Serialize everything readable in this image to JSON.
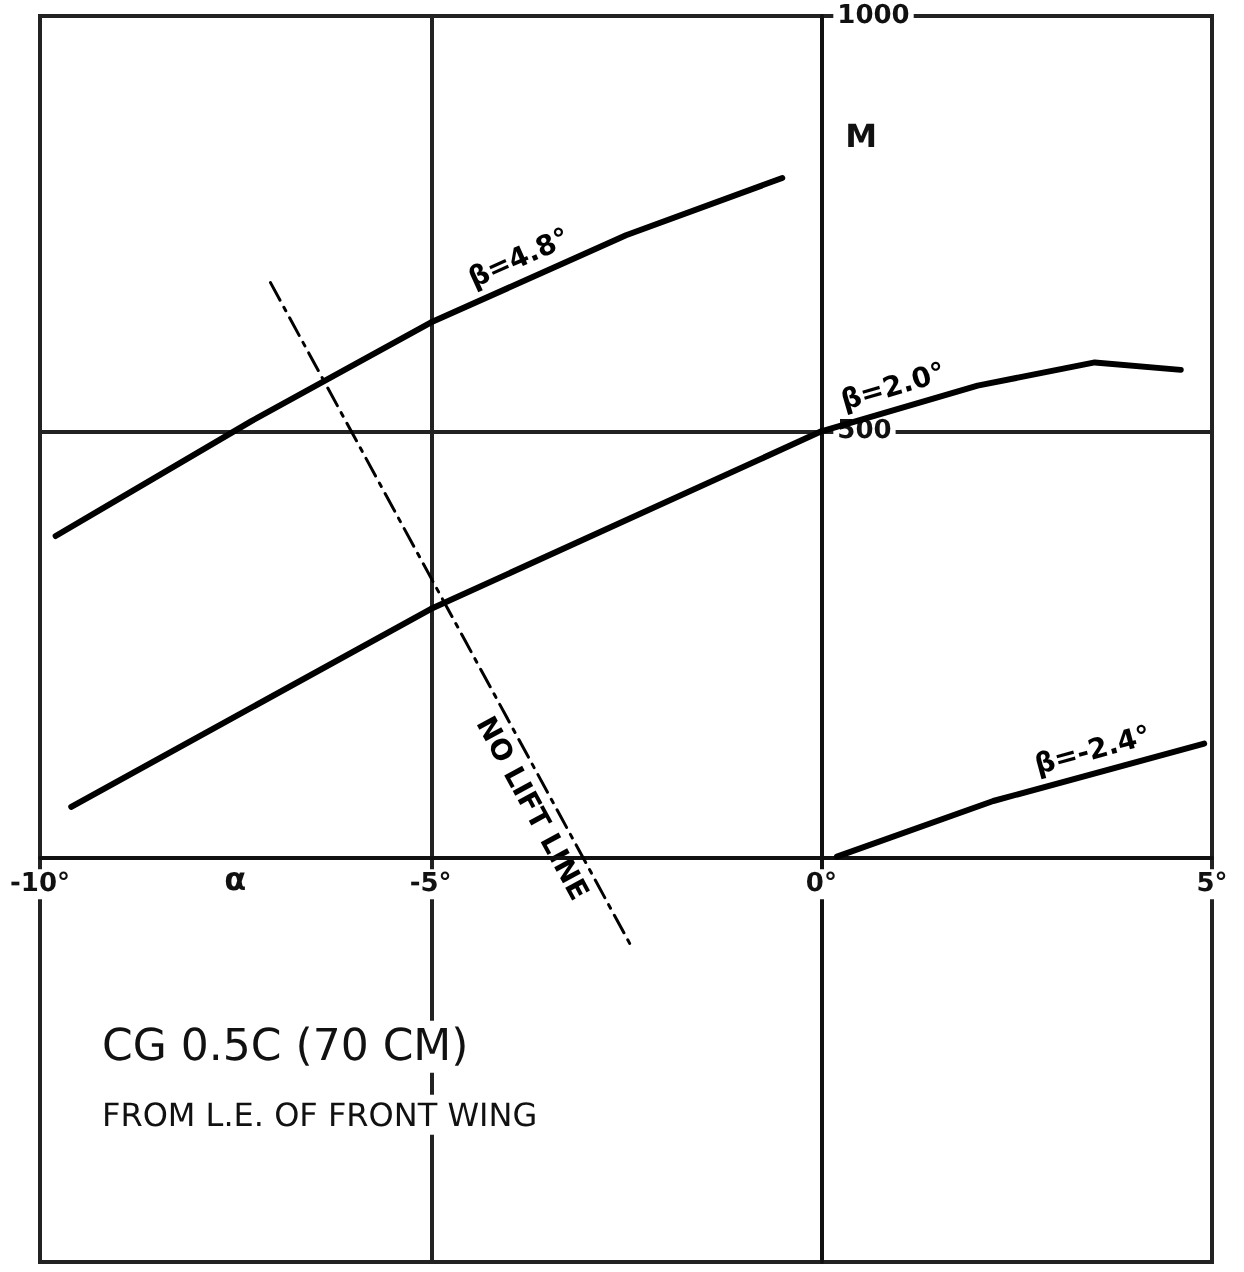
{
  "chart_data": {
    "type": "line",
    "xlabel": "α",
    "ylabel": "M",
    "xlim": [
      -10,
      5
    ],
    "ylim": [
      -500,
      1000
    ],
    "xticks": [
      {
        "value": -10,
        "label": "-10°"
      },
      {
        "value": -5,
        "label": "-5°"
      },
      {
        "value": 0,
        "label": "0°"
      },
      {
        "value": 5,
        "label": "5°"
      }
    ],
    "yticks": [
      500,
      1000
    ],
    "grid": true,
    "legend": false,
    "marker": "none",
    "series": [
      {
        "name": "β=4.8°",
        "color": "#000000",
        "x": [
          -9.8,
          -7.3,
          -5,
          -2.5,
          -0.5
        ],
        "values": [
          374,
          512,
          631,
          736,
          805
        ]
      },
      {
        "name": "β=2.0°",
        "color": "#000000",
        "x": [
          -9.6,
          -5,
          0,
          2,
          3.5,
          4.6
        ],
        "values": [
          48,
          286,
          500,
          555,
          583,
          574
        ]
      },
      {
        "name": "β=-2.4°",
        "color": "#000000",
        "x": [
          0.2,
          2.2,
          4.9
        ],
        "values": [
          -12,
          55,
          124
        ]
      },
      {
        "name": "NO LIFT LINE",
        "color": "#000000",
        "line_style": "dashed",
        "x": [
          -7.05,
          -2.45
        ],
        "values": [
          679,
          -117
        ]
      }
    ],
    "annotations": [
      "CG 0.5C (70 CM)",
      "FROM L.E. OF FRONT WING"
    ]
  }
}
